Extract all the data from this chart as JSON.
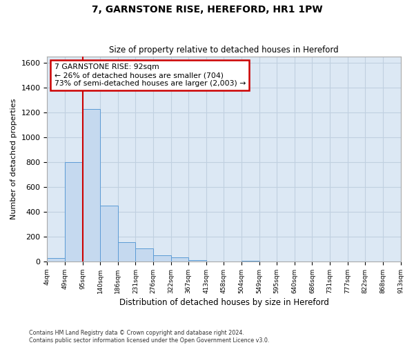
{
  "title": "7, GARNSTONE RISE, HEREFORD, HR1 1PW",
  "subtitle": "Size of property relative to detached houses in Hereford",
  "xlabel": "Distribution of detached houses by size in Hereford",
  "ylabel": "Number of detached properties",
  "bin_labels": [
    "4sqm",
    "49sqm",
    "95sqm",
    "140sqm",
    "186sqm",
    "231sqm",
    "276sqm",
    "322sqm",
    "367sqm",
    "413sqm",
    "458sqm",
    "504sqm",
    "549sqm",
    "595sqm",
    "640sqm",
    "686sqm",
    "731sqm",
    "777sqm",
    "822sqm",
    "868sqm",
    "913sqm"
  ],
  "bar_heights": [
    30,
    800,
    1230,
    450,
    155,
    105,
    50,
    35,
    10,
    0,
    0,
    5,
    0,
    0,
    0,
    0,
    0,
    0,
    0,
    0
  ],
  "bar_color": "#c5d9ef",
  "bar_edge_color": "#5b9bd5",
  "grid_color": "#c0d0e0",
  "background_color": "#dce8f4",
  "property_line_x": 2.0,
  "property_line_color": "#cc0000",
  "annotation_text": "7 GARNSTONE RISE: 92sqm\n← 26% of detached houses are smaller (704)\n73% of semi-detached houses are larger (2,003) →",
  "annotation_box_color": "#cc0000",
  "ylim": [
    0,
    1650
  ],
  "yticks": [
    0,
    200,
    400,
    600,
    800,
    1000,
    1200,
    1400,
    1600
  ],
  "footer_line1": "Contains HM Land Registry data © Crown copyright and database right 2024.",
  "footer_line2": "Contains public sector information licensed under the Open Government Licence v3.0."
}
